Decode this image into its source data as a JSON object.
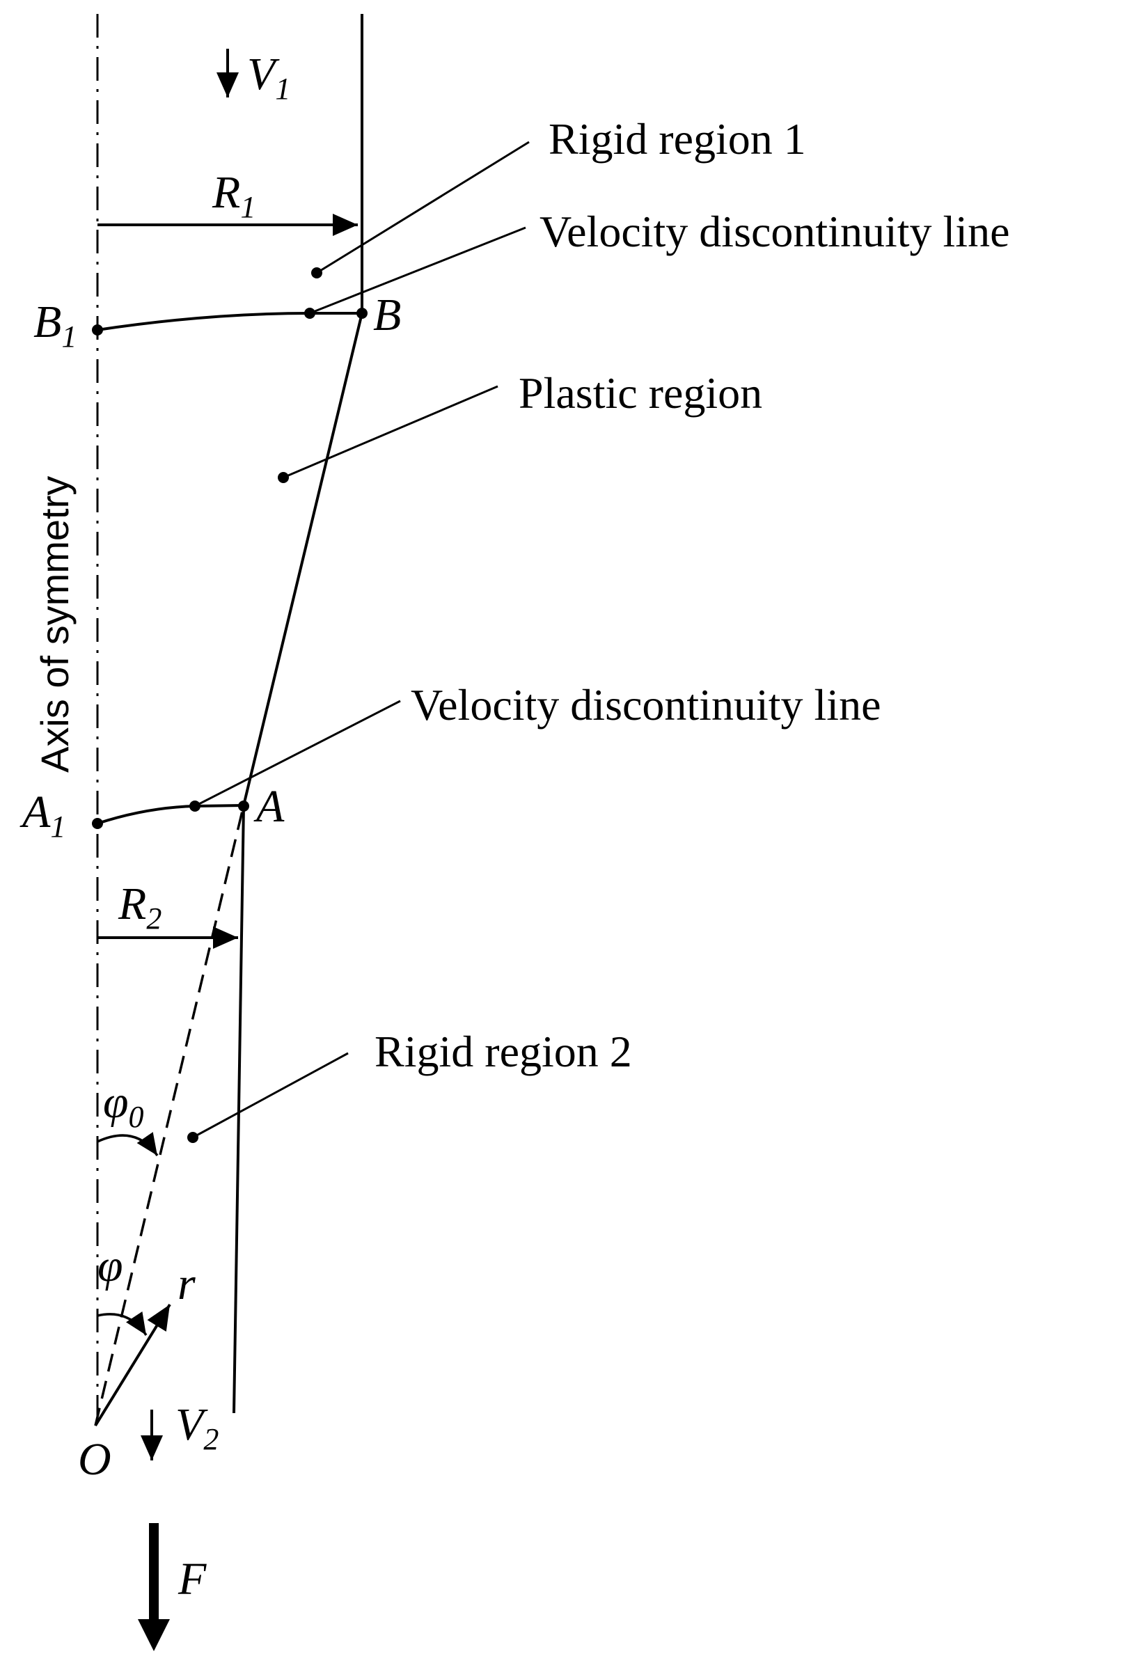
{
  "axis_label": "Axis of symmetry",
  "regions": {
    "rigid_1": "Rigid region 1",
    "velocity_line_top": "Velocity discontinuity line",
    "plastic": "Plastic region",
    "velocity_line_bottom": "Velocity discontinuity line",
    "rigid_2": "Rigid region 2"
  },
  "points": {
    "B": "B",
    "B1": "B",
    "B1_sub": "1",
    "A": "A",
    "A1": "A",
    "A1_sub": "1",
    "O": "O"
  },
  "symbols": {
    "V1": "V",
    "V1_sub": "1",
    "V2": "V",
    "V2_sub": "2",
    "R1": "R",
    "R1_sub": "1",
    "R2": "R",
    "R2_sub": "2",
    "phi0": "φ",
    "phi0_sub": "0",
    "phi": "φ",
    "r": "r",
    "F": "F"
  }
}
